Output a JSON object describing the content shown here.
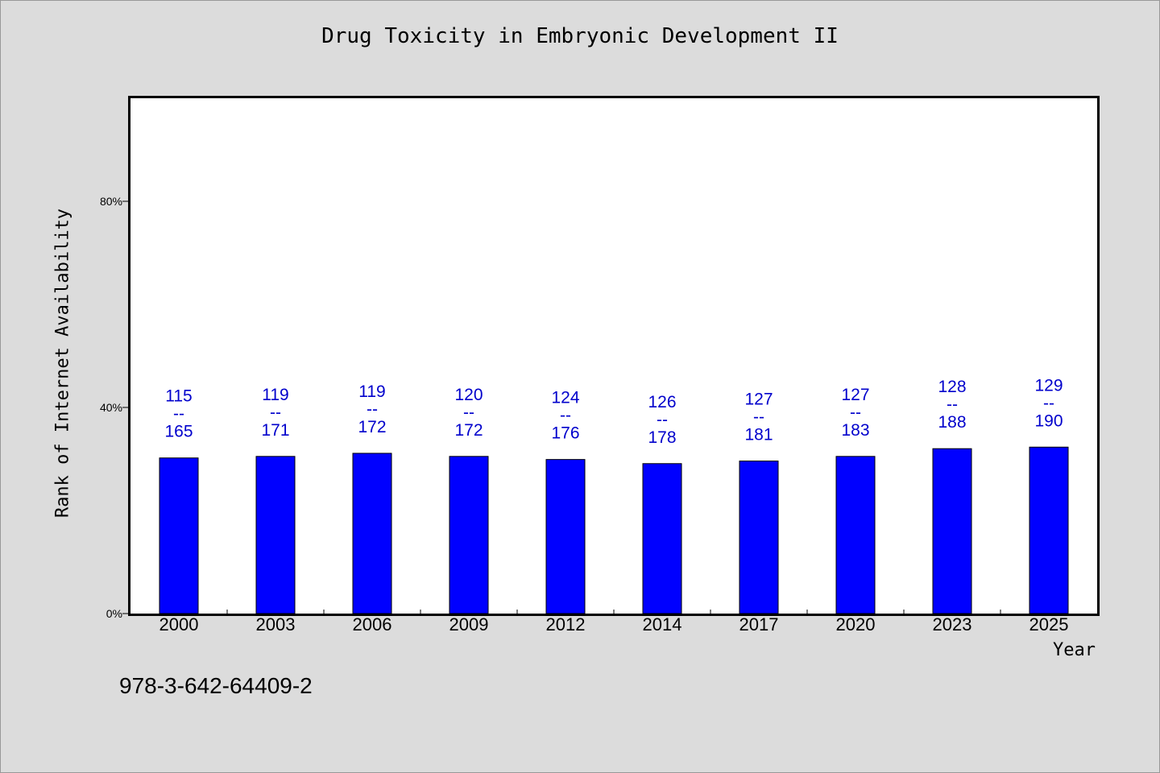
{
  "chart_data": {
    "type": "bar",
    "title": "Drug Toxicity in Embryonic Development II",
    "xlabel": "Year",
    "ylabel": "Rank of Internet Availability",
    "categories": [
      "2000",
      "2003",
      "2006",
      "2009",
      "2012",
      "2014",
      "2017",
      "2020",
      "2023",
      "2025"
    ],
    "values": [
      30.2,
      30.5,
      31.1,
      30.5,
      29.9,
      29.1,
      29.6,
      30.5,
      32.0,
      32.3
    ],
    "data_labels": [
      {
        "top": "115",
        "sep": "--",
        "bottom": "165"
      },
      {
        "top": "119",
        "sep": "--",
        "bottom": "171"
      },
      {
        "top": "119",
        "sep": "--",
        "bottom": "172"
      },
      {
        "top": "120",
        "sep": "--",
        "bottom": "172"
      },
      {
        "top": "124",
        "sep": "--",
        "bottom": "176"
      },
      {
        "top": "126",
        "sep": "--",
        "bottom": "178"
      },
      {
        "top": "127",
        "sep": "--",
        "bottom": "181"
      },
      {
        "top": "127",
        "sep": "--",
        "bottom": "183"
      },
      {
        "top": "128",
        "sep": "--",
        "bottom": "188"
      },
      {
        "top": "129",
        "sep": "--",
        "bottom": "190"
      }
    ],
    "yticks": [
      0,
      40,
      80
    ],
    "ytick_labels": [
      "0%",
      "40%",
      "80%"
    ],
    "ylim": [
      0,
      100
    ],
    "grid": false,
    "colors": {
      "bar": "#0000ff",
      "label": "#0000cc",
      "background": "#dcdcdc",
      "plot_bg": "#ffffff"
    }
  },
  "annotation": "978-3-642-64409-2"
}
